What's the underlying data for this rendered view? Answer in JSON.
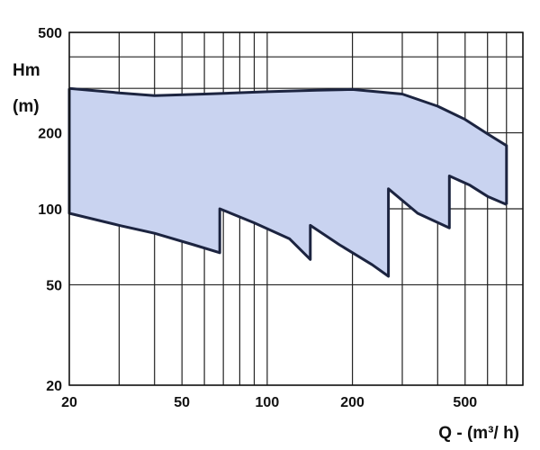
{
  "chart_data": {
    "type": "area",
    "title": "",
    "ylabel_line1": "Hm",
    "ylabel_line2": "(m)",
    "xlabel": "Q - (m³/ h)",
    "xscale": "log",
    "yscale": "log",
    "xlim": [
      20,
      800
    ],
    "ylim": [
      20,
      500
    ],
    "xticks": [
      20,
      50,
      100,
      200,
      500
    ],
    "xtick_labels": [
      "20",
      "50",
      "100",
      "200",
      "500"
    ],
    "yticks": [
      20,
      50,
      100,
      200,
      500
    ],
    "ytick_labels": [
      "20",
      "50",
      "100",
      "200",
      "500"
    ],
    "x_gridlines": [
      20,
      30,
      40,
      50,
      60,
      70,
      80,
      90,
      100,
      200,
      300,
      400,
      500,
      600,
      700,
      800
    ],
    "y_gridlines": [
      20,
      50,
      100,
      200,
      300,
      400,
      500
    ],
    "grid": true,
    "legend": "none",
    "colors": {
      "fill": "#c9d3f0",
      "edge": "#1c2440",
      "grid": "#222222"
    },
    "upper_boundary": [
      [
        20,
        300
      ],
      [
        30,
        288
      ],
      [
        40,
        281
      ],
      [
        60,
        285
      ],
      [
        100,
        291
      ],
      [
        150,
        295
      ],
      [
        200,
        297
      ],
      [
        300,
        285
      ],
      [
        400,
        255
      ],
      [
        500,
        226
      ],
      [
        600,
        198
      ],
      [
        700,
        178
      ]
    ],
    "lower_boundary": [
      [
        20,
        96
      ],
      [
        30,
        86
      ],
      [
        40,
        80
      ],
      [
        55,
        72
      ],
      [
        68,
        67
      ],
      [
        68,
        100
      ],
      [
        90,
        88
      ],
      [
        120,
        76
      ],
      [
        142,
        63
      ],
      [
        142,
        86
      ],
      [
        180,
        72
      ],
      [
        235,
        60
      ],
      [
        268,
        54
      ],
      [
        268,
        120
      ],
      [
        340,
        96
      ],
      [
        440,
        84
      ],
      [
        440,
        135
      ],
      [
        520,
        124
      ],
      [
        600,
        112
      ],
      [
        700,
        104
      ]
    ]
  }
}
